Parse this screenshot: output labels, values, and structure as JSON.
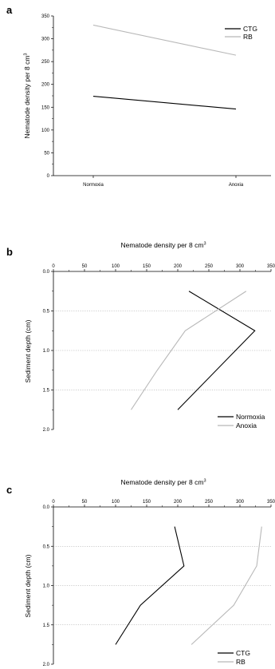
{
  "chart_data": [
    {
      "panel": "a",
      "type": "line",
      "ylabel": "Nematode density per 8 cm",
      "ylabel_sup": "3",
      "categories": [
        "Normoxia",
        "Anoxia"
      ],
      "ylim": [
        0,
        350
      ],
      "yticks": [
        "0",
        "50",
        "100",
        "150",
        "200",
        "250",
        "300",
        "350"
      ],
      "legend": "top-right",
      "series": [
        {
          "name": "CTG",
          "color": "#000000",
          "values": [
            174,
            146
          ]
        },
        {
          "name": "RB",
          "color": "#b8b8b8",
          "values": [
            330,
            264
          ]
        }
      ]
    },
    {
      "panel": "b",
      "type": "line",
      "xlabel": "Nematode density per 8 cm",
      "xlabel_sup": "3",
      "ylabel": "Sediment depth (cm)",
      "xlim": [
        0,
        350
      ],
      "ylim": [
        0,
        2
      ],
      "xticks": [
        "0",
        "50",
        "100",
        "150",
        "200",
        "250",
        "300",
        "350"
      ],
      "yticks": [
        "0.0",
        "0.5",
        "1.0",
        "1.5",
        "2.0"
      ],
      "grid": "horizontal-dotted",
      "legend": "bottom-right",
      "series": [
        {
          "name": "Normoxia",
          "color": "#000000",
          "x": [
            218,
            324,
            200
          ],
          "y": [
            0.25,
            0.75,
            1.75
          ]
        },
        {
          "name": "Anoxia",
          "color": "#b8b8b8",
          "x": [
            310,
            212,
            167,
            125
          ],
          "y": [
            0.25,
            0.75,
            1.25,
            1.75
          ]
        }
      ]
    },
    {
      "panel": "c",
      "type": "line",
      "xlabel": "Nematode density per 8 cm",
      "xlabel_sup": "3",
      "ylabel": "Sediment depth (cm)",
      "xlim": [
        0,
        350
      ],
      "ylim": [
        0,
        2
      ],
      "xticks": [
        "0",
        "50",
        "100",
        "150",
        "200",
        "250",
        "300",
        "350"
      ],
      "yticks": [
        "0.0",
        "0.5",
        "1.0",
        "1.5",
        "2.0"
      ],
      "grid": "horizontal-dotted",
      "legend": "bottom-right",
      "series": [
        {
          "name": "CTG",
          "color": "#000000",
          "x": [
            195,
            210,
            140,
            100
          ],
          "y": [
            0.25,
            0.75,
            1.25,
            1.75
          ]
        },
        {
          "name": "RB",
          "color": "#b8b8b8",
          "x": [
            335,
            327,
            290,
            222
          ],
          "y": [
            0.25,
            0.75,
            1.25,
            1.75
          ]
        }
      ]
    }
  ]
}
